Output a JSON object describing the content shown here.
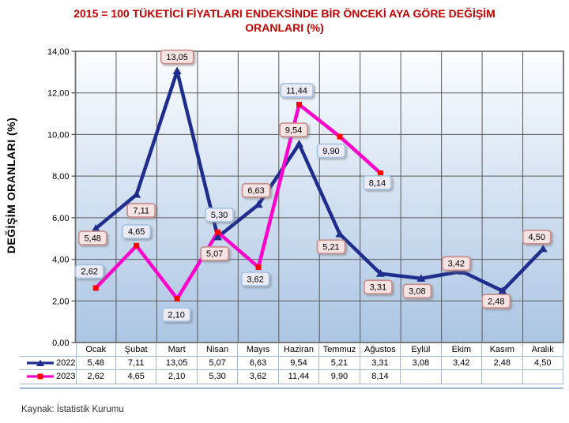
{
  "title_lines": [
    "2015 = 100 TÜKETİCİ FİYATLARI ENDEKSİNDE BİR ÖNCEKİ AYA GÖRE DEĞİŞİM",
    "ORANLARI (%)"
  ],
  "y_axis_title": "DEĞİŞİM ORANLARI (%)",
  "source": "Kaynak: İstatistik Kurumu",
  "colors": {
    "title_red": "#c00000",
    "series_2022": "#1f2d8c",
    "series_2023": "#ff00cc",
    "marker_2023": "#ff0000",
    "gridline": "#595959",
    "plot_border": "#6e6e6e",
    "plot_gradient_top": "#fbfdff",
    "plot_gradient_bottom": "#abc5e3",
    "label_2022_fill": "#f6e4e4",
    "label_2022_border": "#ca8e8c",
    "label_2023_fill": "#eceaf4",
    "label_2023_border": "#a5c4e4",
    "table_border": "#a3bcd6"
  },
  "chart_data": {
    "type": "line",
    "title": "2015 = 100 TÜKETİCİ FİYATLARI ENDEKSİNDE BİR ÖNCEKİ AYA GÖRE DEĞİŞİM ORANLARI (%)",
    "xlabel": "",
    "ylabel": "DEĞİŞİM ORANLARI (%)",
    "ylim": [
      0,
      14
    ],
    "y_tick_step": 2,
    "y_tick_labels": [
      "0,00",
      "2,00",
      "4,00",
      "6,00",
      "8,00",
      "10,00",
      "12,00",
      "14,00"
    ],
    "grid": true,
    "legend_position": "table-left",
    "categories": [
      "Ocak",
      "Şubat",
      "Mart",
      "Nisan",
      "Mayıs",
      "Haziran",
      "Temmuz",
      "Ağustos",
      "Eylül",
      "Ekim",
      "Kasım",
      "Aralık"
    ],
    "series": [
      {
        "name": "2022",
        "color": "#1f2d8c",
        "marker": "triangle",
        "marker_color": "#1f2d8c",
        "values": [
          5.48,
          7.11,
          13.05,
          5.07,
          6.63,
          9.54,
          5.21,
          3.31,
          3.08,
          3.42,
          2.48,
          4.5
        ],
        "labels": [
          "5,48",
          "7,11",
          "13,05",
          "5,07",
          "6,63",
          "9,54",
          "5,21",
          "3,31",
          "3,08",
          "3,42",
          "2,48",
          "4,50"
        ]
      },
      {
        "name": "2023",
        "color": "#ff00cc",
        "marker": "square",
        "marker_color": "#ff0000",
        "values": [
          2.62,
          4.65,
          2.1,
          5.3,
          3.62,
          11.44,
          9.9,
          8.14
        ],
        "labels": [
          "2,62",
          "4,65",
          "2,10",
          "5,30",
          "3,62",
          "11,44",
          "9,90",
          "8,14"
        ]
      }
    ]
  },
  "table": {
    "columns": [
      "Ocak",
      "Şubat",
      "Mart",
      "Nisan",
      "Mayıs",
      "Haziran",
      "Temmuz",
      "Ağustos",
      "Eylül",
      "Ekim",
      "Kasım",
      "Aralık"
    ],
    "rows": [
      {
        "legend": "2022",
        "cells": [
          "5,48",
          "7,11",
          "13,05",
          "5,07",
          "6,63",
          "9,54",
          "5,21",
          "3,31",
          "3,08",
          "3,42",
          "2,48",
          "4,50"
        ]
      },
      {
        "legend": "2023",
        "cells": [
          "2,62",
          "4,65",
          "2,10",
          "5,30",
          "3,62",
          "11,44",
          "9,90",
          "8,14",
          "",
          "",
          "",
          ""
        ]
      }
    ]
  }
}
